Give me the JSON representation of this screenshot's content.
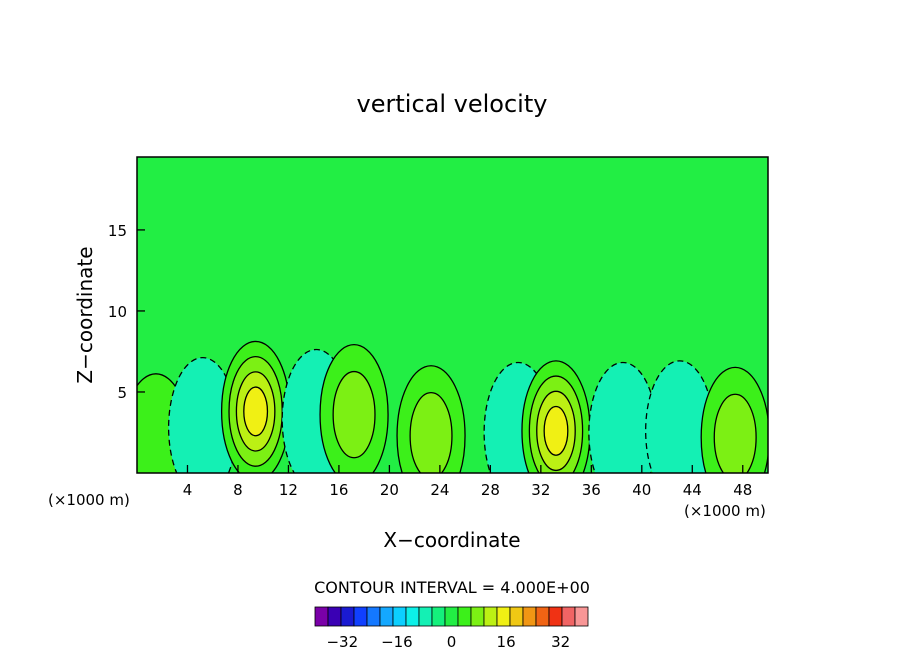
{
  "chart_data": {
    "type": "heatmap",
    "title": "vertical velocity",
    "xlabel": "X−coordinate",
    "ylabel": "Z−coordinate",
    "x_unit_left": "(×1000 m)",
    "x_unit_right": "(×1000 m)",
    "xlim": [
      0,
      50
    ],
    "ylim": [
      0,
      19.5
    ],
    "x_ticks": [
      4,
      8,
      12,
      16,
      20,
      24,
      28,
      32,
      36,
      40,
      44,
      48
    ],
    "y_ticks": [
      5,
      10,
      15
    ],
    "contour_interval_text": "CONTOUR INTERVAL = 4.000E+00",
    "contour_interval": 4,
    "colorbar": {
      "min": -40,
      "max": 40,
      "step": 4,
      "tick_values": [
        -32,
        -16,
        0,
        16,
        32
      ],
      "tick_labels": [
        "−32",
        "−16",
        "0",
        "16",
        "32"
      ],
      "colors": [
        "#7a00a8",
        "#3a00b4",
        "#1a1ad2",
        "#1040ff",
        "#1478ff",
        "#14a8ff",
        "#0ccfff",
        "#0cf0e8",
        "#14f0b4",
        "#14f07c",
        "#22ee44",
        "#3cf01a",
        "#7cf014",
        "#bcf014",
        "#f0f014",
        "#f0c814",
        "#f09614",
        "#f06414",
        "#f03214",
        "#f06464",
        "#f89696"
      ]
    },
    "cells": [
      {
        "x": 1.5,
        "z": 1.8,
        "w": 4
      },
      {
        "x": 5.2,
        "z": 2.8,
        "w": -6
      },
      {
        "x": 9.4,
        "z": 3.8,
        "w": 17
      },
      {
        "x": 14.2,
        "z": 3.3,
        "w": -6
      },
      {
        "x": 17.2,
        "z": 3.6,
        "w": 11
      },
      {
        "x": 23.3,
        "z": 2.3,
        "w": 8
      },
      {
        "x": 30.2,
        "z": 2.5,
        "w": -6
      },
      {
        "x": 33.2,
        "z": 2.6,
        "w": 17
      },
      {
        "x": 38.5,
        "z": 2.5,
        "w": -5
      },
      {
        "x": 43.0,
        "z": 2.6,
        "w": -4
      },
      {
        "x": 47.4,
        "z": 2.2,
        "w": 9
      }
    ]
  }
}
